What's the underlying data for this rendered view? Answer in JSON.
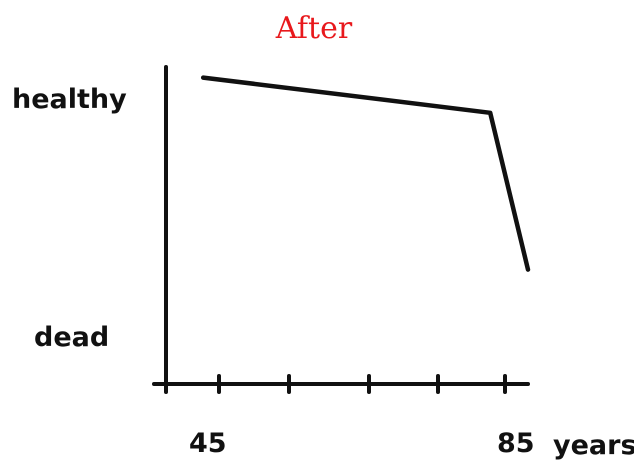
{
  "chart_data": {
    "type": "line",
    "title": "After",
    "xlabel": "years",
    "ylabel": "",
    "x_ticks": [
      45,
      85
    ],
    "y_ticks": [
      "healthy",
      "dead"
    ],
    "xlim": [
      41,
      88
    ],
    "ylim": [
      0,
      1
    ],
    "grid": false,
    "series": [
      {
        "x": [
          45,
          83,
          88
        ],
        "y": [
          0.92,
          0.81,
          0.32
        ]
      }
    ]
  }
}
